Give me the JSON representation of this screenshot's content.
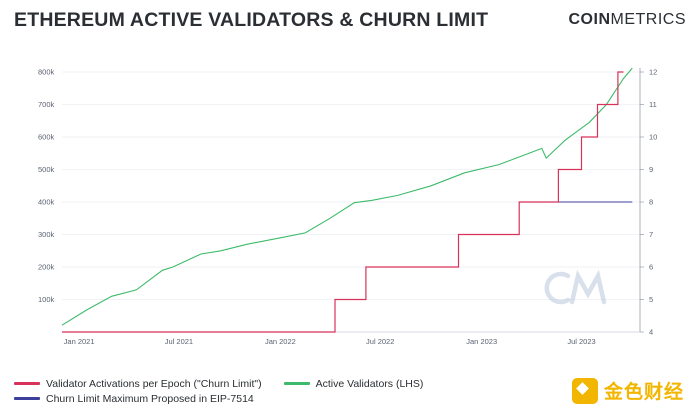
{
  "header": {
    "title": "ETHEREUM ACTIVE VALIDATORS & CHURN LIMIT",
    "brand_bold": "COIN",
    "brand_light": "METRICS"
  },
  "watermark": {
    "text": "金色财经",
    "logo_color": "#f2b600"
  },
  "colors": {
    "churn": "#d8325a",
    "validators": "#3dbb6a",
    "proposed": "#3c3f9c",
    "grid": "#e3e6ec",
    "watermark": "#b9c7dc"
  },
  "chart_data": {
    "type": "line",
    "title": "ETHEREUM ACTIVE VALIDATORS & CHURN LIMIT",
    "x_ticks": [
      "Jan 2021",
      "Jul 2021",
      "Jan 2022",
      "Jul 2022",
      "Jan 2023",
      "Jul 2023"
    ],
    "x_range": [
      "2020-12-01",
      "2023-10-15"
    ],
    "y_left": {
      "ticks": [
        "100k",
        "200k",
        "300k",
        "400k",
        "500k",
        "600k",
        "700k",
        "800k"
      ],
      "range": [
        0,
        800000
      ]
    },
    "y_right": {
      "ticks": [
        "4",
        "5",
        "6",
        "7",
        "8",
        "9",
        "10",
        "11",
        "12"
      ],
      "range": [
        4,
        12
      ]
    },
    "grid": true,
    "legend_position": "bottom-left",
    "series": [
      {
        "name": "Validator Activations per Epoch (\"Churn Limit\")",
        "axis": "right",
        "step": true,
        "points": [
          [
            "2020-12-01",
            4
          ],
          [
            "2022-04-10",
            4
          ],
          [
            "2022-04-10",
            5
          ],
          [
            "2022-06-05",
            5
          ],
          [
            "2022-06-05",
            6
          ],
          [
            "2022-11-20",
            6
          ],
          [
            "2022-11-20",
            7
          ],
          [
            "2023-03-10",
            7
          ],
          [
            "2023-03-10",
            8
          ],
          [
            "2023-05-20",
            8
          ],
          [
            "2023-05-20",
            9
          ],
          [
            "2023-07-01",
            9
          ],
          [
            "2023-07-01",
            10
          ],
          [
            "2023-07-30",
            10
          ],
          [
            "2023-07-30",
            11
          ],
          [
            "2023-09-05",
            11
          ],
          [
            "2023-09-05",
            12
          ],
          [
            "2023-09-15",
            12
          ]
        ]
      },
      {
        "name": "Active Validators (LHS)",
        "axis": "left",
        "points": [
          [
            "2020-12-01",
            21000
          ],
          [
            "2021-01-15",
            68000
          ],
          [
            "2021-03-01",
            110000
          ],
          [
            "2021-04-15",
            130000
          ],
          [
            "2021-06-01",
            190000
          ],
          [
            "2021-06-20",
            200000
          ],
          [
            "2021-08-10",
            240000
          ],
          [
            "2021-09-15",
            250000
          ],
          [
            "2021-11-01",
            270000
          ],
          [
            "2022-01-01",
            290000
          ],
          [
            "2022-02-15",
            305000
          ],
          [
            "2022-04-01",
            350000
          ],
          [
            "2022-05-15",
            398000
          ],
          [
            "2022-06-15",
            405000
          ],
          [
            "2022-08-01",
            420000
          ],
          [
            "2022-10-01",
            450000
          ],
          [
            "2022-12-01",
            490000
          ],
          [
            "2023-02-01",
            515000
          ],
          [
            "2023-03-20",
            545000
          ],
          [
            "2023-04-20",
            565000
          ],
          [
            "2023-04-28",
            535000
          ],
          [
            "2023-06-01",
            590000
          ],
          [
            "2023-07-15",
            645000
          ],
          [
            "2023-08-15",
            700000
          ],
          [
            "2023-09-15",
            780000
          ],
          [
            "2023-10-01",
            812000
          ]
        ]
      },
      {
        "name": "Churn Limit Maximum Proposed in EIP-7514",
        "axis": "right",
        "points": [
          [
            "2023-03-10",
            8
          ],
          [
            "2023-10-01",
            8
          ]
        ]
      }
    ]
  }
}
